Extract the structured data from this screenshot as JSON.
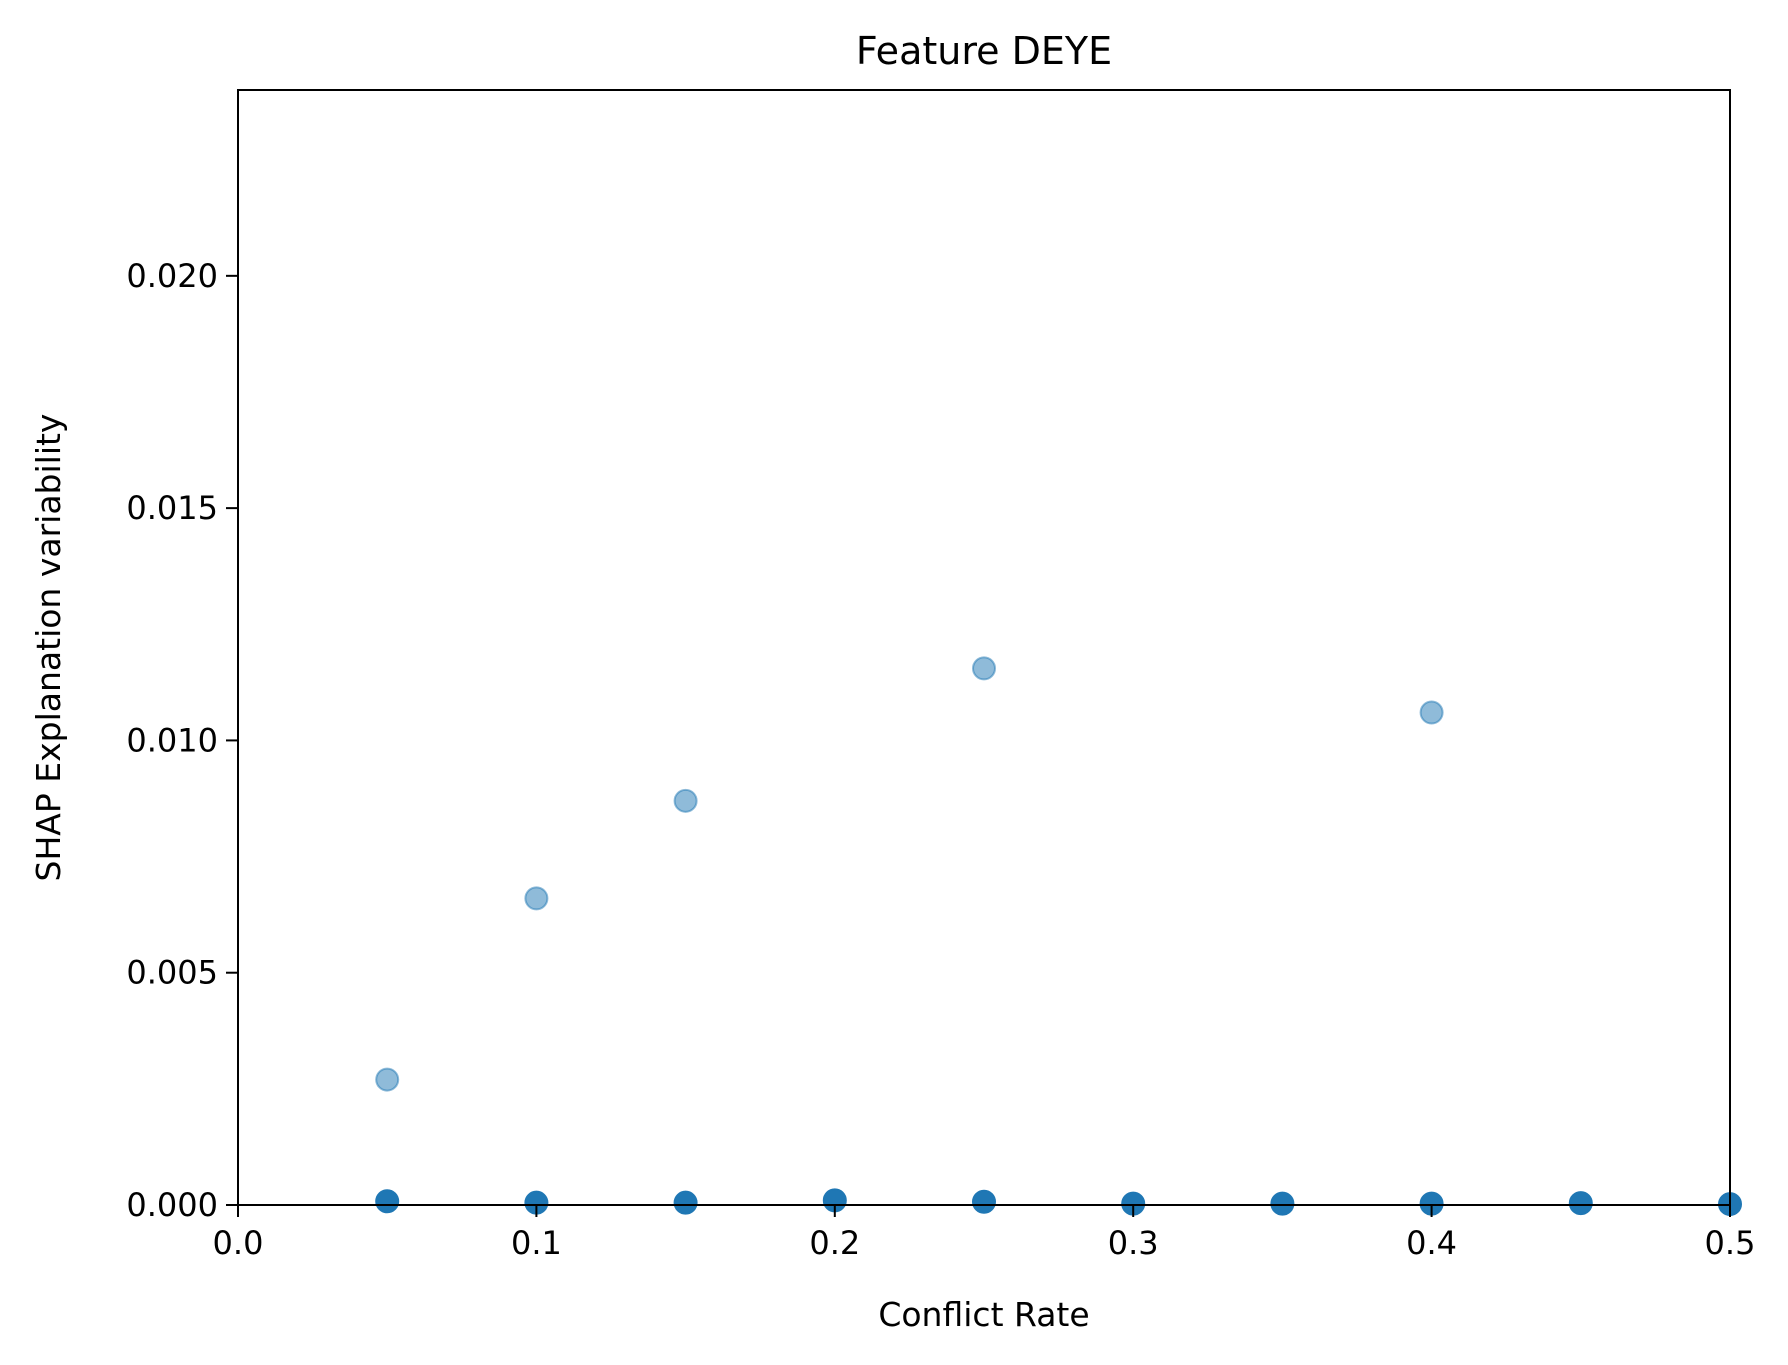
{
  "chart_data": {
    "type": "scatter",
    "title": "Feature DEYE",
    "xlabel": "Conflict Rate",
    "ylabel": "SHAP Explanation variability",
    "xlim": [
      0.0,
      0.5
    ],
    "ylim": [
      0.0,
      0.024
    ],
    "x_ticks": [
      0.0,
      0.1,
      0.2,
      0.3,
      0.4,
      0.5
    ],
    "x_tick_labels": [
      "0.0",
      "0.1",
      "0.2",
      "0.3",
      "0.4",
      "0.5"
    ],
    "y_ticks": [
      0.0,
      0.005,
      0.01,
      0.015,
      0.02
    ],
    "y_tick_labels": [
      "0.000",
      "0.005",
      "0.010",
      "0.015",
      "0.020"
    ],
    "grid": false,
    "series": [
      {
        "color": "#1f77b4",
        "opacity": 0.5,
        "points": [
          {
            "x": 0.05,
            "y": 0.0027
          },
          {
            "x": 0.1,
            "y": 0.0066
          },
          {
            "x": 0.15,
            "y": 0.0087
          },
          {
            "x": 0.25,
            "y": 0.01155
          },
          {
            "x": 0.4,
            "y": 0.0106
          }
        ]
      },
      {
        "color": "#1f77b4",
        "opacity": 1.0,
        "points": [
          {
            "x": 0.05,
            "y": 8e-05
          },
          {
            "x": 0.1,
            "y": 5e-05
          },
          {
            "x": 0.15,
            "y": 5e-05
          },
          {
            "x": 0.2,
            "y": 0.0001
          },
          {
            "x": 0.25,
            "y": 7e-05
          },
          {
            "x": 0.3,
            "y": 3e-05
          },
          {
            "x": 0.35,
            "y": 3e-05
          },
          {
            "x": 0.4,
            "y": 3e-05
          },
          {
            "x": 0.45,
            "y": 4e-05
          },
          {
            "x": 0.5,
            "y": 2e-05
          }
        ]
      }
    ]
  }
}
